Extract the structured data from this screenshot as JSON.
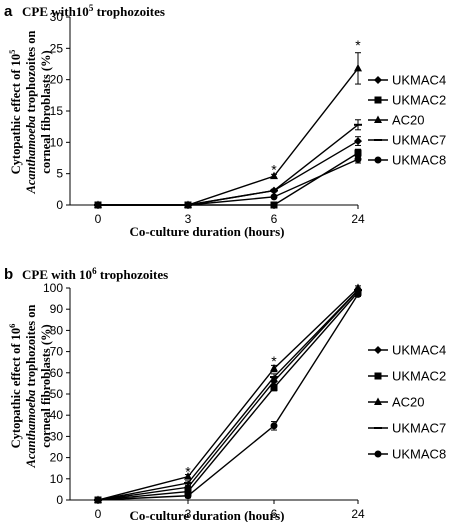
{
  "chart_data": [
    {
      "type": "line",
      "panel_letter": "a",
      "title": "CPE with10",
      "title_sup": "5",
      "title_tail": " trophozoites",
      "ylabel_line1": "Cytopathic effect of 10",
      "ylabel_line1_sup": "5",
      "ylabel_line2_italic": "Acanthamoeba",
      "ylabel_line2_tail": " trophozoites on",
      "ylabel_line3": "corneal fibroblasts  (%)",
      "xlabel": "Co-culture duration (hours)",
      "categories": [
        "0",
        "3",
        "6",
        "24"
      ],
      "ylim": [
        0,
        30
      ],
      "yticks": [
        0,
        5,
        10,
        15,
        20,
        25,
        30
      ],
      "series": [
        {
          "name": "UKMAC4",
          "marker": "diamond",
          "values": [
            0,
            0,
            2.3,
            10.2
          ],
          "errors": [
            0,
            0,
            0.2,
            0.7
          ]
        },
        {
          "name": "UKMAC2",
          "marker": "square",
          "values": [
            0,
            0,
            0,
            8.3
          ],
          "errors": [
            0,
            0,
            0,
            0.6
          ]
        },
        {
          "name": "AC20",
          "marker": "triangle",
          "values": [
            0,
            0,
            4.6,
            21.8
          ],
          "errors": [
            0,
            0,
            0.3,
            2.5
          ]
        },
        {
          "name": "UKMAC7",
          "marker": "dash",
          "values": [
            0,
            0,
            2.3,
            12.8
          ],
          "errors": [
            0,
            0,
            0.2,
            0.8
          ]
        },
        {
          "name": "UKMAC8",
          "marker": "circle",
          "values": [
            0,
            0,
            1.3,
            7.3
          ],
          "errors": [
            0,
            0,
            0.2,
            0.6
          ]
        }
      ],
      "annotations": [
        {
          "text": "*",
          "category": "6",
          "value": 5.8
        },
        {
          "text": "*",
          "category": "24",
          "value": 25.7
        }
      ],
      "legend_position": "right"
    },
    {
      "type": "line",
      "panel_letter": "b",
      "title": "CPE with 10",
      "title_sup": "6",
      "title_tail": " trophozoites",
      "ylabel_line1": "Cytopathic effect of 10",
      "ylabel_line1_sup": "6",
      "ylabel_line2_italic": "Acanthamoeba",
      "ylabel_line2_tail": " trophozoites on",
      "ylabel_line3": "corneal fibroblasts  (%)",
      "xlabel": "Co-culture duration (hours)",
      "categories": [
        "0",
        "3",
        "6",
        "24"
      ],
      "ylim": [
        0,
        100
      ],
      "yticks": [
        0,
        10,
        20,
        30,
        40,
        50,
        60,
        70,
        80,
        90,
        100
      ],
      "series": [
        {
          "name": "UKMAC4",
          "marker": "diamond",
          "values": [
            0,
            6,
            56,
            99
          ],
          "errors": [
            0,
            1,
            1.5,
            1
          ]
        },
        {
          "name": "UKMAC2",
          "marker": "square",
          "values": [
            0,
            4,
            53,
            98
          ],
          "errors": [
            0,
            1,
            1.5,
            1
          ]
        },
        {
          "name": "AC20",
          "marker": "triangle",
          "values": [
            0,
            11,
            62,
            100
          ],
          "errors": [
            0,
            1,
            1.5,
            1
          ]
        },
        {
          "name": "UKMAC7",
          "marker": "dash",
          "values": [
            0,
            8,
            58,
            99
          ],
          "errors": [
            0,
            1,
            1.5,
            1
          ]
        },
        {
          "name": "UKMAC8",
          "marker": "circle",
          "values": [
            0,
            2,
            35,
            97
          ],
          "errors": [
            0,
            1,
            2,
            1
          ]
        }
      ],
      "annotations": [
        {
          "text": "*",
          "category": "3",
          "value": 14
        },
        {
          "text": "*",
          "category": "6",
          "value": 66
        }
      ],
      "legend_position": "right"
    }
  ]
}
